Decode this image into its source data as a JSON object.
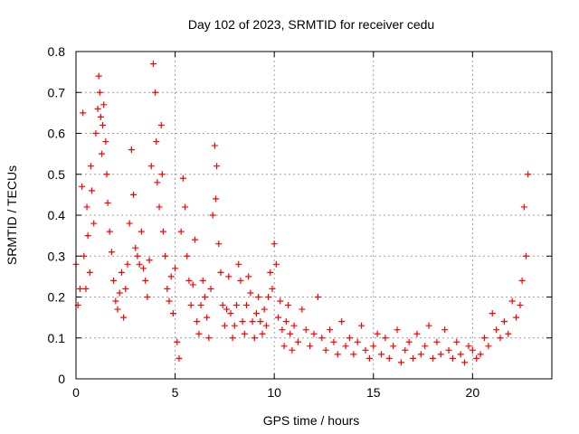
{
  "chart_data": {
    "type": "scatter",
    "title": "Day 102 of 2023, SRMTID for receiver cedu",
    "xlabel": "GPS time / hours",
    "ylabel": "SRMTID / TECUs",
    "xlim": [
      0,
      24
    ],
    "ylim": [
      0,
      0.8
    ],
    "x_ticks": [
      0,
      5,
      10,
      15,
      20
    ],
    "x_tick_labels": [
      "0",
      "5",
      "10",
      "15",
      "20"
    ],
    "y_ticks": [
      0,
      0.1,
      0.2,
      0.3,
      0.4,
      0.5,
      0.6,
      0.7,
      0.8
    ],
    "y_tick_labels": [
      "0",
      "0.1",
      "0.2",
      "0.3",
      "0.4",
      "0.5",
      "0.6",
      "0.7",
      "0.8"
    ],
    "grid": true,
    "marker": "+",
    "color": "#ff0000",
    "series": [
      {
        "name": "SRMTID",
        "x": [
          0.0,
          0.1,
          0.2,
          0.3,
          0.35,
          0.4,
          0.5,
          0.55,
          0.6,
          0.7,
          0.75,
          0.8,
          0.9,
          1.0,
          1.1,
          1.15,
          1.2,
          1.25,
          1.3,
          1.35,
          1.4,
          1.5,
          1.55,
          1.6,
          1.7,
          1.8,
          1.9,
          2.0,
          2.1,
          2.2,
          2.3,
          2.4,
          2.5,
          2.6,
          2.7,
          2.8,
          2.9,
          3.0,
          3.1,
          3.2,
          3.3,
          3.4,
          3.5,
          3.6,
          3.7,
          3.8,
          3.9,
          4.0,
          4.05,
          4.1,
          4.2,
          4.3,
          4.35,
          4.4,
          4.5,
          4.6,
          4.7,
          4.8,
          4.9,
          5.0,
          5.1,
          5.2,
          5.3,
          5.4,
          5.5,
          5.6,
          5.7,
          5.8,
          5.9,
          6.0,
          6.1,
          6.2,
          6.3,
          6.4,
          6.5,
          6.6,
          6.7,
          6.8,
          6.9,
          7.0,
          7.05,
          7.1,
          7.2,
          7.3,
          7.4,
          7.5,
          7.6,
          7.7,
          7.8,
          7.9,
          8.0,
          8.1,
          8.2,
          8.3,
          8.4,
          8.5,
          8.6,
          8.7,
          8.8,
          8.9,
          9.0,
          9.1,
          9.2,
          9.3,
          9.4,
          9.5,
          9.6,
          9.7,
          9.8,
          9.9,
          10.0,
          10.1,
          10.2,
          10.3,
          10.4,
          10.5,
          10.6,
          10.7,
          10.8,
          10.9,
          11.0,
          11.2,
          11.4,
          11.6,
          11.8,
          12.0,
          12.2,
          12.4,
          12.6,
          12.8,
          13.0,
          13.2,
          13.4,
          13.6,
          13.8,
          14.0,
          14.2,
          14.4,
          14.6,
          14.8,
          15.0,
          15.2,
          15.4,
          15.6,
          15.8,
          16.0,
          16.2,
          16.4,
          16.6,
          16.8,
          17.0,
          17.2,
          17.4,
          17.6,
          17.8,
          18.0,
          18.2,
          18.4,
          18.6,
          18.8,
          19.0,
          19.2,
          19.4,
          19.6,
          19.8,
          20.0,
          20.2,
          20.4,
          20.6,
          20.8,
          21.0,
          21.2,
          21.4,
          21.6,
          21.8,
          22.0,
          22.2,
          22.4,
          22.5,
          22.6,
          22.7,
          22.8
        ],
        "y": [
          0.28,
          0.18,
          0.22,
          0.47,
          0.65,
          0.3,
          0.22,
          0.42,
          0.35,
          0.26,
          0.52,
          0.46,
          0.38,
          0.6,
          0.66,
          0.74,
          0.7,
          0.64,
          0.55,
          0.62,
          0.67,
          0.58,
          0.5,
          0.43,
          0.36,
          0.31,
          0.24,
          0.19,
          0.17,
          0.21,
          0.26,
          0.15,
          0.22,
          0.28,
          0.38,
          0.56,
          0.45,
          0.32,
          0.3,
          0.28,
          0.36,
          0.27,
          0.24,
          0.2,
          0.29,
          0.52,
          0.77,
          0.7,
          0.58,
          0.48,
          0.42,
          0.62,
          0.5,
          0.36,
          0.3,
          0.22,
          0.19,
          0.25,
          0.16,
          0.27,
          0.09,
          0.05,
          0.36,
          0.49,
          0.42,
          0.3,
          0.24,
          0.18,
          0.23,
          0.34,
          0.14,
          0.11,
          0.18,
          0.24,
          0.2,
          0.15,
          0.1,
          0.22,
          0.4,
          0.57,
          0.44,
          0.52,
          0.33,
          0.26,
          0.18,
          0.13,
          0.17,
          0.25,
          0.16,
          0.1,
          0.13,
          0.18,
          0.28,
          0.24,
          0.14,
          0.11,
          0.18,
          0.25,
          0.21,
          0.14,
          0.1,
          0.16,
          0.2,
          0.14,
          0.11,
          0.17,
          0.13,
          0.2,
          0.26,
          0.22,
          0.33,
          0.28,
          0.15,
          0.19,
          0.12,
          0.08,
          0.14,
          0.18,
          0.11,
          0.07,
          0.13,
          0.09,
          0.17,
          0.12,
          0.08,
          0.11,
          0.2,
          0.1,
          0.07,
          0.12,
          0.09,
          0.06,
          0.14,
          0.08,
          0.1,
          0.06,
          0.09,
          0.13,
          0.07,
          0.05,
          0.08,
          0.11,
          0.06,
          0.1,
          0.05,
          0.08,
          0.12,
          0.04,
          0.07,
          0.09,
          0.05,
          0.11,
          0.06,
          0.08,
          0.13,
          0.05,
          0.09,
          0.06,
          0.12,
          0.07,
          0.05,
          0.09,
          0.06,
          0.04,
          0.08,
          0.07,
          0.05,
          0.06,
          0.1,
          0.08,
          0.16,
          0.12,
          0.1,
          0.14,
          0.11,
          0.19,
          0.15,
          0.18,
          0.24,
          0.42,
          0.3,
          0.5
        ]
      }
    ]
  }
}
